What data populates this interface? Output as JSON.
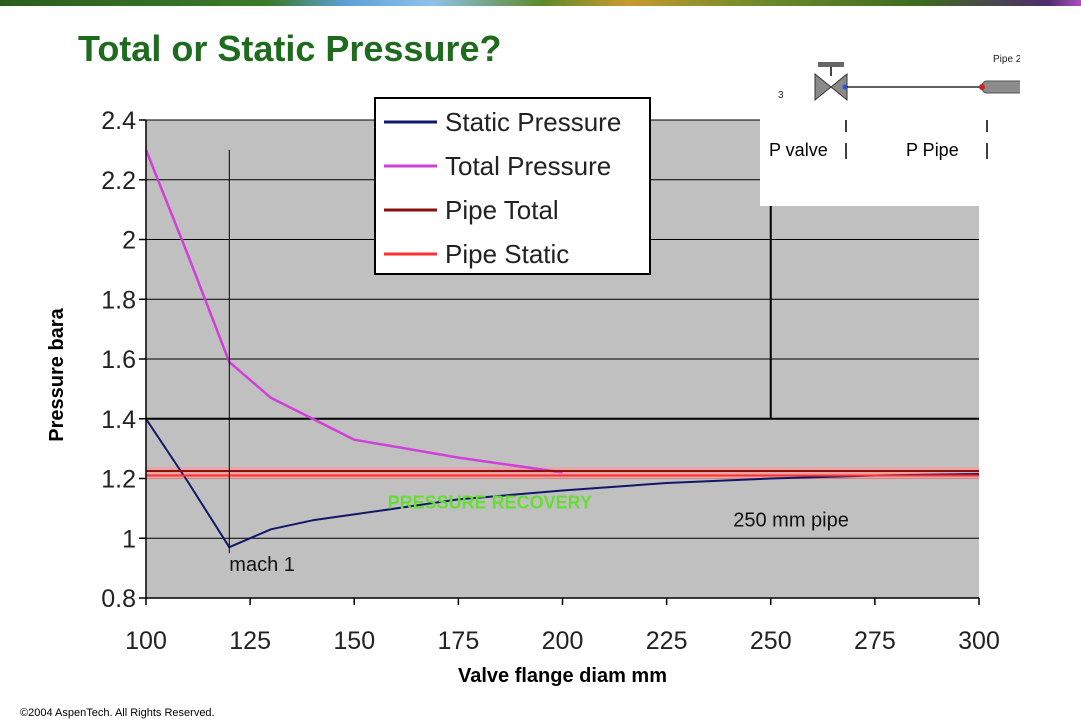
{
  "slide": {
    "title": "Total or Static Pressure?",
    "copyright": "©2004 AspenTech.  All Rights Reserved."
  },
  "inset": {
    "stream_label": "3",
    "pipe_label": "Pipe 2",
    "p_valve_label": "P valve",
    "p_pipe_label": "P Pipe",
    "colors": {
      "pipe_body": "#8c8c8c",
      "inlet_dot": "#cc2222",
      "outlet_dot": "#2a4fd8"
    }
  },
  "chart_data": {
    "type": "line",
    "xlabel": "Valve flange diam  mm",
    "ylabel": "Pressure bara",
    "xlim": [
      100,
      300
    ],
    "ylim": [
      0.8,
      2.4
    ],
    "xticks": [
      "100",
      "125",
      "150",
      "175",
      "200",
      "225",
      "250",
      "275",
      "300"
    ],
    "yticks": [
      "0.8",
      "1",
      "1.2",
      "1.4",
      "1.6",
      "1.8",
      "2",
      "2.2",
      "2.4"
    ],
    "grid": true,
    "legend_position": "top-center",
    "plot_background": "#c0c0c0",
    "series": [
      {
        "name": "Static Pressure",
        "color": "#101868",
        "x": [
          100,
          110,
          120,
          130,
          140,
          150,
          175,
          200,
          225,
          250,
          275,
          300
        ],
        "y": [
          1.4,
          1.19,
          0.97,
          1.03,
          1.06,
          1.08,
          1.13,
          1.16,
          1.185,
          1.2,
          1.21,
          1.215
        ]
      },
      {
        "name": "Total Pressure",
        "color": "#d040d8",
        "x": [
          100,
          110,
          120,
          125,
          130,
          140,
          150,
          175,
          200
        ],
        "y": [
          2.3,
          1.95,
          1.59,
          1.53,
          1.47,
          1.4,
          1.33,
          1.27,
          1.22
        ]
      },
      {
        "name": "Pipe Total",
        "color": "#8a1010",
        "x": [
          100,
          300
        ],
        "y": [
          1.225,
          1.225
        ]
      },
      {
        "name": "Pipe Static",
        "color": "#ff3030",
        "x": [
          100,
          300
        ],
        "y": [
          1.21,
          1.21
        ]
      }
    ],
    "reference_lines": [
      {
        "axis": "y",
        "value": 1.4,
        "color": "#000000"
      }
    ],
    "annotations": [
      {
        "text": "mach 1",
        "x": 120,
        "y": 0.89,
        "line_x": 120,
        "line_y": [
          0.95,
          2.3
        ]
      },
      {
        "text": "250 mm pipe",
        "x": 241,
        "y": 1.04,
        "line_x": 250,
        "line_y": [
          1.4,
          2.12
        ]
      },
      {
        "text": "PRESSURE RECOVERY",
        "x": 158,
        "y": 1.1,
        "color": "#66dd33"
      }
    ]
  }
}
